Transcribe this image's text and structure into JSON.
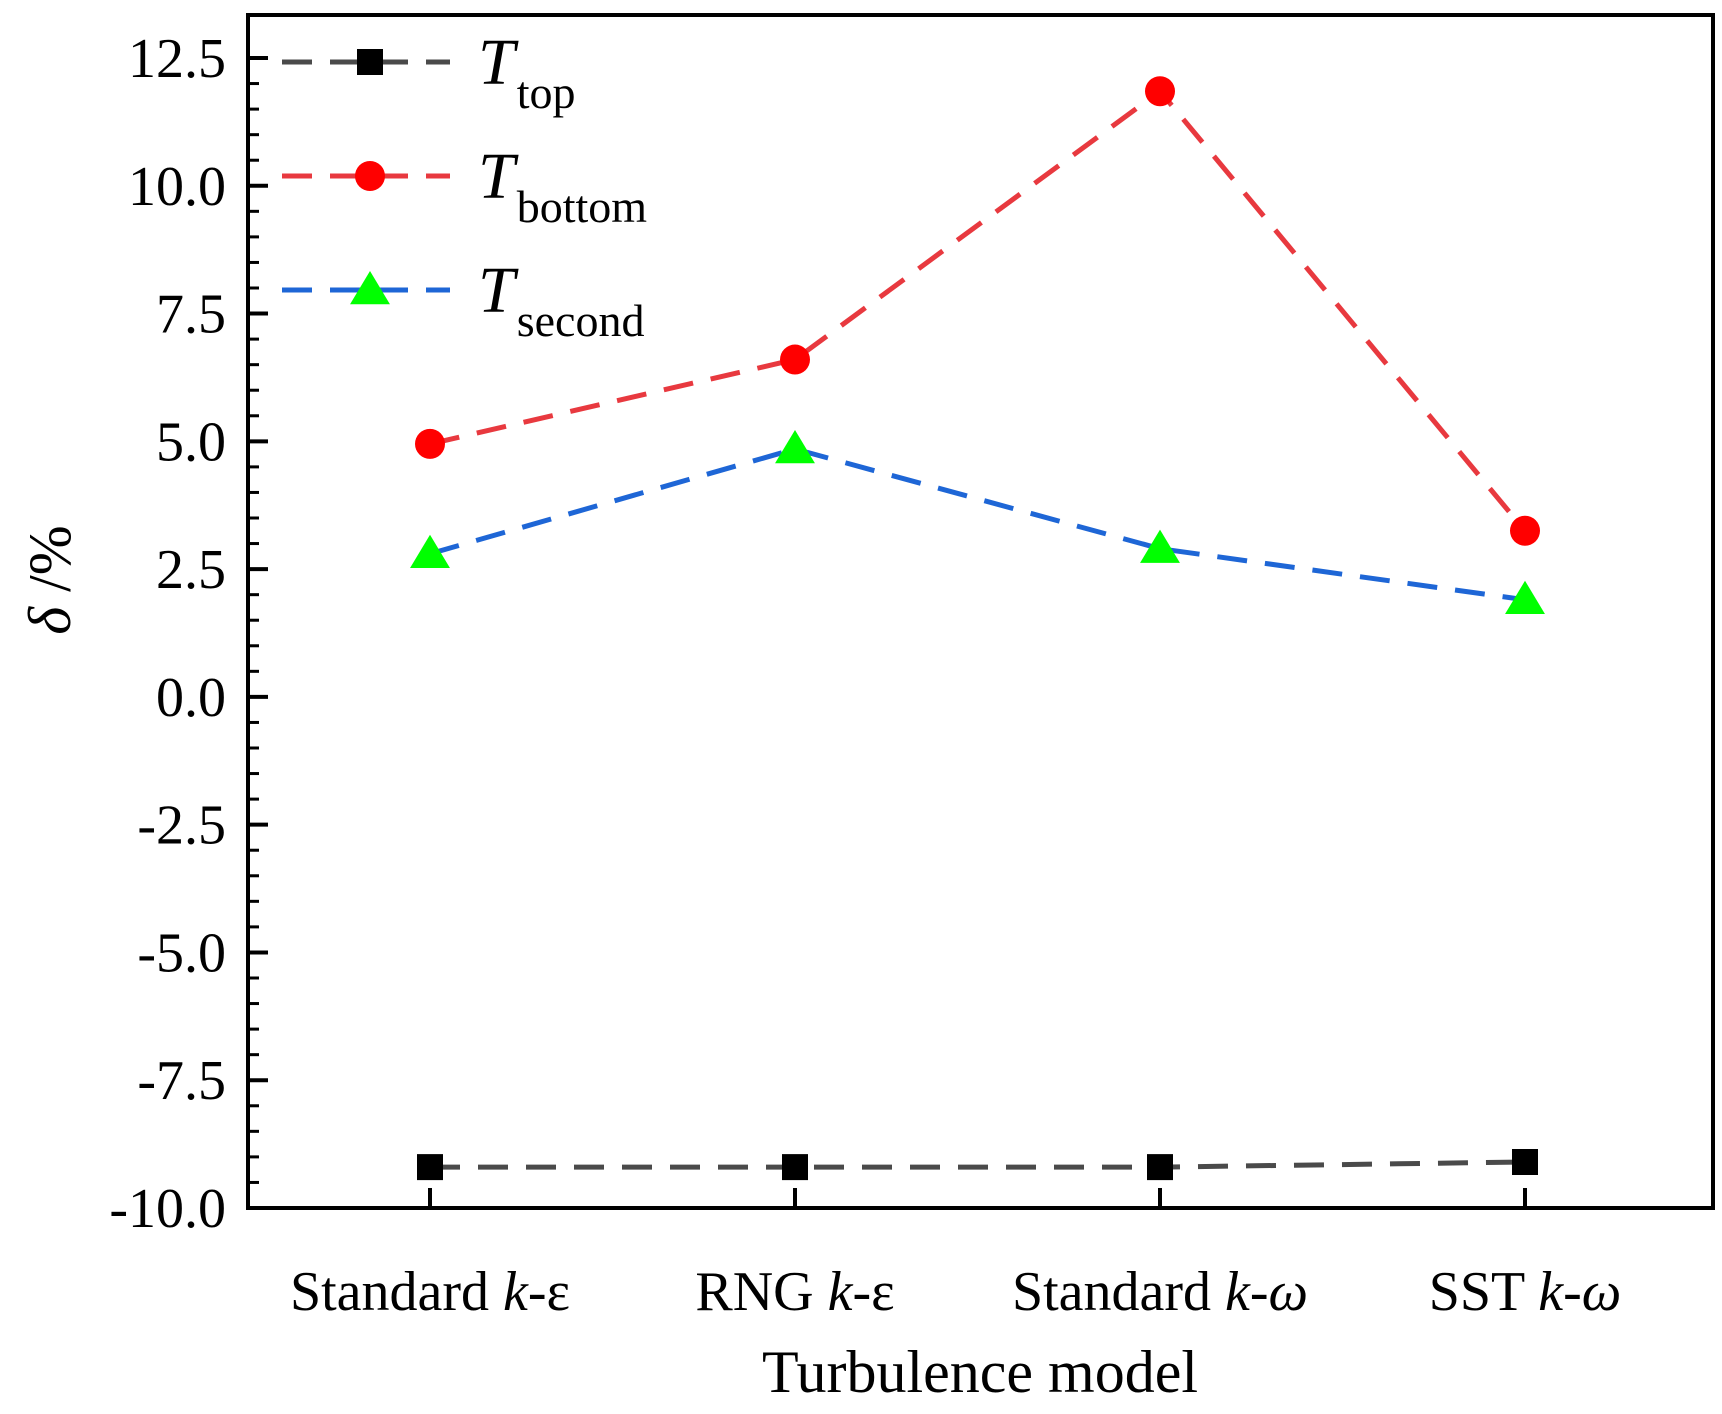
{
  "chart_data": {
    "type": "line",
    "title": "",
    "xlabel": "Turbulence model",
    "ylabel": "δ /%",
    "ylim": [
      -10.0,
      12.5
    ],
    "yticks": [
      "-10.0",
      "-7.5",
      "-5.0",
      "-2.5",
      "0.0",
      "2.5",
      "5.0",
      "7.5",
      "10.0",
      "12.5"
    ],
    "ytick_values": [
      -10.0,
      -7.5,
      -5.0,
      -2.5,
      0.0,
      2.5,
      5.0,
      7.5,
      10.0,
      12.5
    ],
    "categories": [
      {
        "main": "Standard ",
        "italic": "k",
        "suffix": "-ε"
      },
      {
        "main": "RNG ",
        "italic": "k",
        "suffix": "-ε"
      },
      {
        "main": "Standard ",
        "italic": "k-ω",
        "suffix": ""
      },
      {
        "main": "SST ",
        "italic": "k-ω",
        "suffix": ""
      }
    ],
    "legend_position": "top-left",
    "series": [
      {
        "name": "T",
        "subscript": "top",
        "marker": "square",
        "line_color": "#4a4a4a",
        "marker_color": "#000000",
        "values": [
          -9.2,
          -9.2,
          -9.2,
          -9.1
        ]
      },
      {
        "name": "T",
        "subscript": "bottom",
        "marker": "circle",
        "line_color": "#e8393f",
        "marker_color": "#ff0000",
        "values": [
          4.95,
          6.6,
          11.85,
          3.25
        ]
      },
      {
        "name": "T",
        "subscript": "second",
        "marker": "triangle",
        "line_color": "#1e66d6",
        "marker_color": "#00ff00",
        "values": [
          2.8,
          4.85,
          2.9,
          1.9
        ]
      }
    ]
  }
}
